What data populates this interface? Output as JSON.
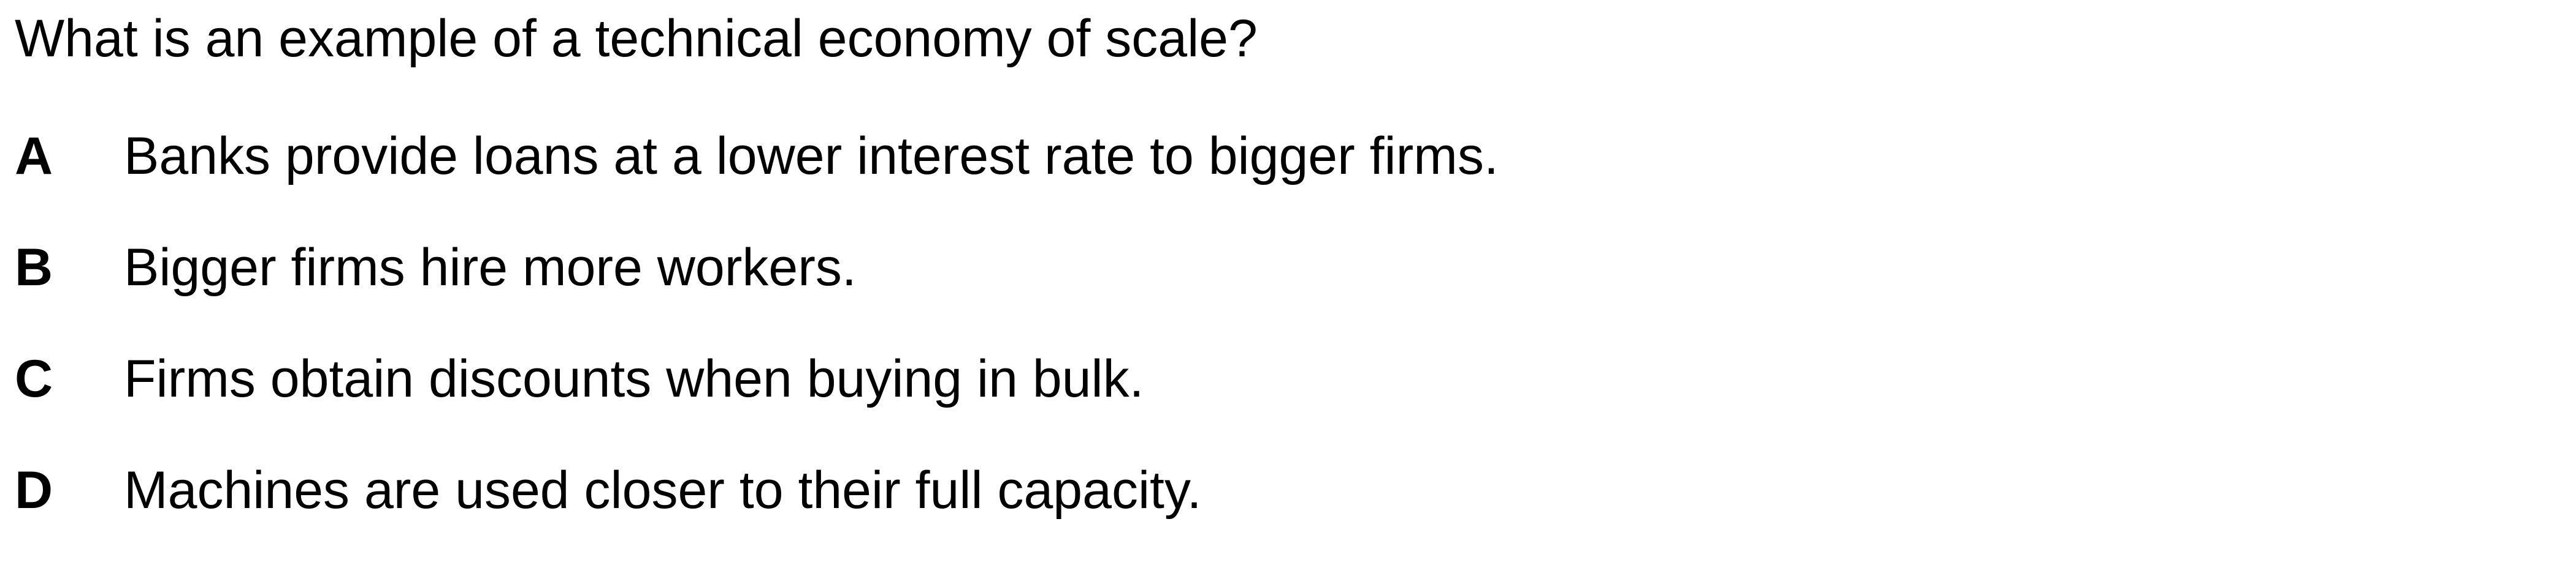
{
  "question": {
    "text": "What is an example of a technical economy of scale?"
  },
  "options": [
    {
      "letter": "A",
      "text": "Banks provide loans at a lower interest rate to bigger firms."
    },
    {
      "letter": "B",
      "text": "Bigger firms hire more workers."
    },
    {
      "letter": "C",
      "text": "Firms obtain discounts when buying in bulk."
    },
    {
      "letter": "D",
      "text": "Machines are used closer to their full capacity."
    }
  ]
}
